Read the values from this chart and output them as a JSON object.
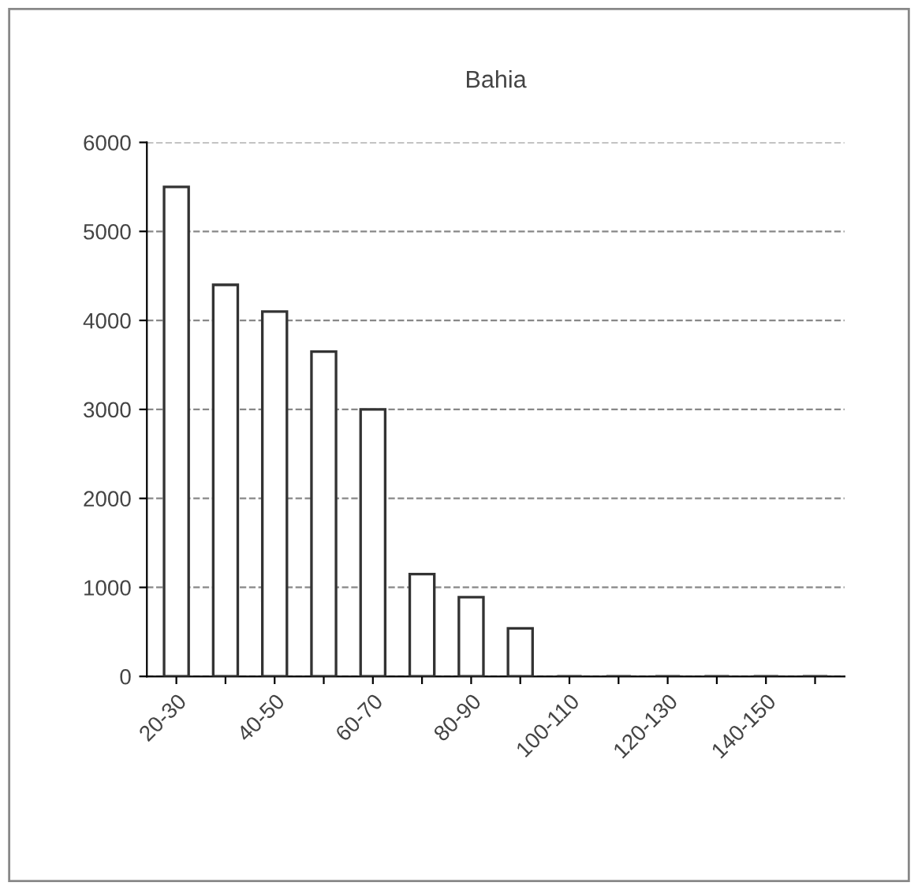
{
  "chart_data": {
    "type": "bar",
    "title": "Bahia",
    "categories": [
      "20-30",
      null,
      "40-50",
      null,
      "60-70",
      null,
      "80-90",
      null,
      "100-110",
      null,
      "120-130",
      null,
      "140-150",
      null
    ],
    "values": [
      5500,
      4400,
      4100,
      3650,
      3000,
      1150,
      890,
      540,
      0,
      0,
      0,
      0,
      0,
      0
    ],
    "color": "#333333",
    "ylim": [
      0,
      6000
    ],
    "yticks": [
      0,
      1000,
      2000,
      3000,
      4000,
      5000,
      6000
    ],
    "grid": "y"
  }
}
